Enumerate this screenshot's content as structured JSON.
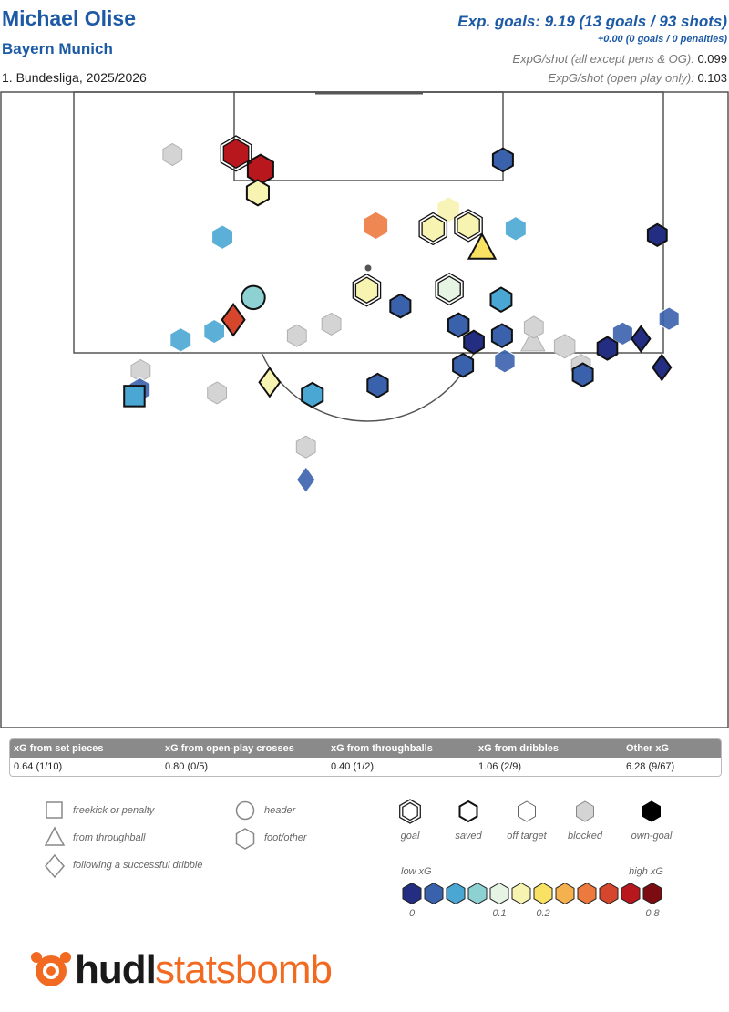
{
  "header": {
    "player": "Michael Olise",
    "team": "Bayern Munich",
    "competition": "1. Bundesliga, 2025/2026",
    "xg_headline": "Exp. goals: 9.19 (13 goals / 93 shots)",
    "pens_line": "+0.00 (0 goals / 0 penalties)",
    "xg_per_shot_all_label": "ExpG/shot (all except pens & OG):",
    "xg_per_shot_all_value": "0.099",
    "xg_per_shot_open_label": "ExpG/shot (open play only):",
    "xg_per_shot_open_value": "0.103"
  },
  "summary": {
    "headers": [
      "xG from set pieces",
      "xG from open-play crosses",
      "xG from throughballs",
      "xG from dribbles",
      "Other xG"
    ],
    "values": [
      "0.64 (1/10)",
      "0.80 (0/5)",
      "0.40 (1/2)",
      "1.06 (2/9)",
      "6.28 (9/67)"
    ]
  },
  "legend": {
    "shapes": [
      "freekick or penalty",
      "from throughball",
      "following a successful dribble",
      "header",
      "foot/other"
    ],
    "outcomes": [
      "goal",
      "saved",
      "off target",
      "blocked",
      "own-goal"
    ],
    "scale_low": "low xG",
    "scale_high": "high xG",
    "scale_ticks": [
      "0",
      "0.1",
      "0.2",
      "0.8"
    ]
  },
  "logo": {
    "part1": "hudl",
    "part2": "statsbomb"
  },
  "colors": {
    "title": "#1c5aa6",
    "scale": [
      "#232e82",
      "#3a62ac",
      "#4aa7d3",
      "#8ed1d3",
      "#e5f4e3",
      "#f7f3b0",
      "#f9e163",
      "#f5b14e",
      "#ec7a3e",
      "#d5462c",
      "#b8171d",
      "#7d0b12"
    ],
    "blocked": "#d4d4d4",
    "logo": "#f26a21"
  },
  "chart_data": {
    "type": "scatter",
    "title": "Michael Olise",
    "notes": "Shot map, attacking end of the pitch. x/y in StatsBomb pitch units (x toward goal 80-120, y across 0-80).",
    "xlim": [
      60,
      120
    ],
    "ylim": [
      0,
      80
    ],
    "series": [
      {
        "x": 114.2,
        "y": 25.9,
        "xg": 0.6,
        "outcome": "goal",
        "shape": "foot"
      },
      {
        "x": 112.7,
        "y": 28.6,
        "xg": 0.7,
        "outcome": "saved",
        "shape": "foot"
      },
      {
        "x": 113.6,
        "y": 55.3,
        "xg": 0.02,
        "outcome": "saved",
        "shape": "foot"
      },
      {
        "x": 108.9,
        "y": 49.3,
        "xg": 0.18,
        "outcome": "off target",
        "shape": "foot"
      },
      {
        "x": 107.4,
        "y": 41.3,
        "xg": 0.4,
        "outcome": "off target",
        "shape": "foot"
      },
      {
        "x": 105.2,
        "y": 53.0,
        "xg": 0.25,
        "outcome": "saved",
        "shape": "throughball"
      },
      {
        "x": 114.1,
        "y": 18.9,
        "xg": 0.0,
        "outcome": "blocked",
        "shape": "foot"
      },
      {
        "x": 110.5,
        "y": 28.3,
        "xg": 0.15,
        "outcome": "saved",
        "shape": "foot"
      },
      {
        "x": 107.1,
        "y": 47.6,
        "xg": 0.16,
        "outcome": "goal",
        "shape": "foot"
      },
      {
        "x": 107.4,
        "y": 51.5,
        "xg": 0.16,
        "outcome": "goal",
        "shape": "foot"
      },
      {
        "x": 107.1,
        "y": 56.7,
        "xg": 0.06,
        "outcome": "off target",
        "shape": "foot"
      },
      {
        "x": 100.6,
        "y": 27.8,
        "xg": 0.08,
        "outcome": "saved",
        "shape": "header"
      },
      {
        "x": 101.4,
        "y": 49.4,
        "xg": 0.14,
        "outcome": "goal",
        "shape": "foot"
      },
      {
        "x": 98.1,
        "y": 36.4,
        "xg": 0.0,
        "outcome": "blocked",
        "shape": "foot"
      },
      {
        "x": 98.5,
        "y": 25.6,
        "xg": 0.5,
        "outcome": "saved",
        "shape": "dribble"
      },
      {
        "x": 96.4,
        "y": 58.6,
        "xg": 0.04,
        "outcome": "blocked",
        "shape": "throughball"
      },
      {
        "x": 97.4,
        "y": 23.5,
        "xg": 0.05,
        "outcome": "off target",
        "shape": "foot"
      },
      {
        "x": 94.2,
        "y": 50.9,
        "xg": 0.02,
        "outcome": "saved",
        "shape": "foot"
      },
      {
        "x": 92.6,
        "y": 29.6,
        "xg": 0.18,
        "outcome": "saved",
        "shape": "dribble"
      },
      {
        "x": 92.3,
        "y": 41.5,
        "xg": 0.03,
        "outcome": "saved",
        "shape": "foot"
      },
      {
        "x": 91.4,
        "y": 34.3,
        "xg": 0.07,
        "outcome": "saved",
        "shape": "foot"
      },
      {
        "x": 93.7,
        "y": 15.4,
        "xg": 0.0,
        "outcome": "blocked",
        "shape": "foot"
      },
      {
        "x": 91.9,
        "y": 15.3,
        "xg": 0.04,
        "outcome": "off target",
        "shape": "foot"
      },
      {
        "x": 91.3,
        "y": 14.7,
        "xg": 0.06,
        "outcome": "saved",
        "shape": "freekick"
      },
      {
        "x": 91.6,
        "y": 23.8,
        "xg": 0.0,
        "outcome": "blocked",
        "shape": "foot"
      },
      {
        "x": 86.5,
        "y": 33.6,
        "xg": 0.0,
        "outcome": "blocked",
        "shape": "foot"
      },
      {
        "x": 83.4,
        "y": 33.6,
        "xg": 0.03,
        "outcome": "off target",
        "shape": "dribble"
      },
      {
        "x": 96.6,
        "y": 19.8,
        "xg": 0.06,
        "outcome": "off target",
        "shape": "foot"
      },
      {
        "x": 106.3,
        "y": 24.4,
        "xg": 0.06,
        "outcome": "off target",
        "shape": "foot"
      },
      {
        "x": 97.0,
        "y": 32.6,
        "xg": 0.0,
        "outcome": "blocked",
        "shape": "foot"
      },
      {
        "x": 101.3,
        "y": 40.3,
        "xg": 0.16,
        "outcome": "goal",
        "shape": "foot"
      },
      {
        "x": 99.8,
        "y": 44.0,
        "xg": 0.02,
        "outcome": "saved",
        "shape": "foot"
      },
      {
        "x": 97.8,
        "y": 58.7,
        "xg": 0.0,
        "outcome": "blocked",
        "shape": "foot"
      },
      {
        "x": 100.4,
        "y": 55.1,
        "xg": 0.06,
        "outcome": "saved",
        "shape": "foot"
      },
      {
        "x": 97.0,
        "y": 55.2,
        "xg": 0.02,
        "outcome": "saved",
        "shape": "foot"
      },
      {
        "x": 98.0,
        "y": 50.4,
        "xg": 0.04,
        "outcome": "saved",
        "shape": "foot"
      },
      {
        "x": 96.4,
        "y": 52.1,
        "xg": 0.01,
        "outcome": "saved",
        "shape": "foot"
      },
      {
        "x": 96.0,
        "y": 62.1,
        "xg": 0.04,
        "outcome": "blocked",
        "shape": "foot"
      },
      {
        "x": 93.3,
        "y": 64.1,
        "xg": 0.02,
        "outcome": "saved",
        "shape": "foot"
      },
      {
        "x": 95.8,
        "y": 66.8,
        "xg": 0.01,
        "outcome": "saved",
        "shape": "foot"
      },
      {
        "x": 97.2,
        "y": 68.5,
        "xg": 0.02,
        "outcome": "off target",
        "shape": "foot"
      },
      {
        "x": 96.7,
        "y": 70.5,
        "xg": 0.01,
        "outcome": "saved",
        "shape": "dribble"
      },
      {
        "x": 94.0,
        "y": 72.8,
        "xg": 0.01,
        "outcome": "saved",
        "shape": "dribble"
      },
      {
        "x": 106.5,
        "y": 72.3,
        "xg": 0.0,
        "outcome": "saved",
        "shape": "foot"
      },
      {
        "x": 98.6,
        "y": 73.6,
        "xg": 0.02,
        "outcome": "off target",
        "shape": "foot"
      },
      {
        "x": 94.2,
        "y": 63.9,
        "xg": 0.0,
        "outcome": "blocked",
        "shape": "foot"
      },
      {
        "x": 94.6,
        "y": 55.5,
        "xg": 0.03,
        "outcome": "off target",
        "shape": "foot"
      }
    ],
    "legend": [
      "freekick or penalty",
      "from throughball",
      "following a successful dribble",
      "header",
      "foot/other",
      "goal",
      "saved",
      "off target",
      "blocked",
      "own-goal"
    ]
  }
}
